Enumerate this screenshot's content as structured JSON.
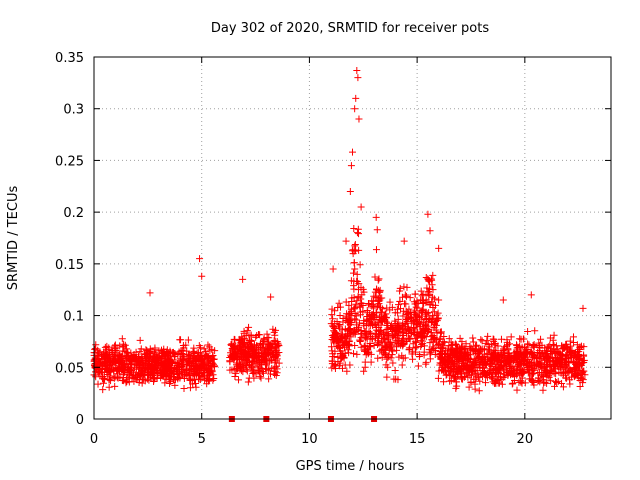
{
  "chart_data": {
    "type": "scatter",
    "title": "Day 302 of 2020, SRMTID for receiver pots",
    "xlabel": "GPS time / hours",
    "ylabel": "SRMTID / TECUs",
    "xlim": [
      0,
      24
    ],
    "ylim": [
      0,
      0.35
    ],
    "grid": true,
    "marker": "+",
    "colors": {
      "points": "#ff0000",
      "gaps": "#e00000",
      "grid": "#a0a0a0",
      "axis": "#000000"
    },
    "x_ticks": [
      {
        "value": 0,
        "label": "0"
      },
      {
        "value": 5,
        "label": "5"
      },
      {
        "value": 10,
        "label": "10"
      },
      {
        "value": 15,
        "label": "15"
      },
      {
        "value": 20,
        "label": "20"
      }
    ],
    "y_ticks": [
      {
        "value": 0,
        "label": "0"
      },
      {
        "value": 0.05,
        "label": "0.05"
      },
      {
        "value": 0.1,
        "label": "0.1"
      },
      {
        "value": 0.15,
        "label": "0.15"
      },
      {
        "value": 0.2,
        "label": "0.2"
      },
      {
        "value": 0.25,
        "label": "0.25"
      },
      {
        "value": 0.3,
        "label": "0.3"
      },
      {
        "value": 0.35,
        "label": "0.35"
      }
    ],
    "data_gaps_at_zero": [
      6.4,
      8.0,
      11.0,
      13.0
    ],
    "series": [
      {
        "name": "SRMTID",
        "x_range": [
          0,
          22.8
        ],
        "segments": [
          {
            "x_start": 0.0,
            "x_end": 5.6,
            "baseline": 0.052,
            "spread": 0.035
          },
          {
            "x_start": 6.3,
            "x_end": 8.6,
            "baseline": 0.062,
            "spread": 0.04
          },
          {
            "x_start": 11.0,
            "x_end": 16.0,
            "baseline": 0.075,
            "spread": 0.06
          },
          {
            "x_start": 16.0,
            "x_end": 22.8,
            "baseline": 0.055,
            "spread": 0.04
          }
        ],
        "notable_points": [
          {
            "x": 2.6,
            "y": 0.122
          },
          {
            "x": 4.9,
            "y": 0.155
          },
          {
            "x": 5.0,
            "y": 0.138
          },
          {
            "x": 6.9,
            "y": 0.135
          },
          {
            "x": 8.2,
            "y": 0.118
          },
          {
            "x": 11.1,
            "y": 0.145
          },
          {
            "x": 11.7,
            "y": 0.172
          },
          {
            "x": 11.9,
            "y": 0.22
          },
          {
            "x": 11.95,
            "y": 0.245
          },
          {
            "x": 12.0,
            "y": 0.258
          },
          {
            "x": 12.1,
            "y": 0.3
          },
          {
            "x": 12.15,
            "y": 0.31
          },
          {
            "x": 12.2,
            "y": 0.337
          },
          {
            "x": 12.25,
            "y": 0.33
          },
          {
            "x": 12.3,
            "y": 0.29
          },
          {
            "x": 12.4,
            "y": 0.205
          },
          {
            "x": 13.1,
            "y": 0.195
          },
          {
            "x": 13.15,
            "y": 0.183
          },
          {
            "x": 14.4,
            "y": 0.172
          },
          {
            "x": 15.5,
            "y": 0.198
          },
          {
            "x": 15.6,
            "y": 0.182
          },
          {
            "x": 16.0,
            "y": 0.165
          },
          {
            "x": 19.0,
            "y": 0.115
          },
          {
            "x": 20.3,
            "y": 0.12
          },
          {
            "x": 22.7,
            "y": 0.107
          }
        ]
      }
    ]
  }
}
